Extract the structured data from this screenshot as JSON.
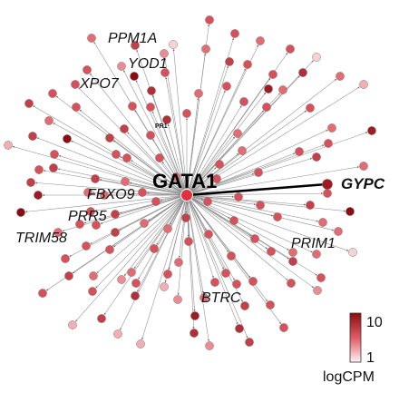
{
  "hub": {
    "label": "GATA1",
    "color": "#e0313c"
  },
  "highlight_label": "GYPC",
  "labels": {
    "ppm1a": "PPM1A",
    "yod1": "YOD1",
    "xpo7": "XPO7",
    "pr1": "PR1",
    "fbxo9": "FBXO9",
    "prr5": "PRR5",
    "trim58": "TRIM58",
    "prim1": "PRIM1",
    "btrc": "BTRC"
  },
  "legend": {
    "max_label": "10",
    "min_label": "1",
    "title": "logCPM",
    "color_low": "#fff3f3",
    "color_high": "#8b0c12"
  },
  "nodes": [
    [
      101,
      42,
      5
    ],
    [
      149,
      50,
      7
    ],
    [
      191,
      49,
      2
    ],
    [
      231,
      22,
      6
    ],
    [
      259,
      37,
      6
    ],
    [
      287,
      45,
      5
    ],
    [
      320,
      54,
      6
    ],
    [
      334,
      80,
      8
    ],
    [
      349,
      63,
      2
    ],
    [
      181,
      59,
      4
    ],
    [
      227,
      54,
      5
    ],
    [
      253,
      68,
      7
    ],
    [
      273,
      71,
      6
    ],
    [
      301,
      82,
      6
    ],
    [
      312,
      99,
      5
    ],
    [
      375,
      84,
      5
    ],
    [
      401,
      93,
      3
    ],
    [
      342,
      119,
      6
    ],
    [
      296,
      98,
      9
    ],
    [
      294,
      118,
      6
    ],
    [
      250,
      95,
      6
    ],
    [
      269,
      112,
      6
    ],
    [
      219,
      103,
      5
    ],
    [
      206,
      125,
      6
    ],
    [
      184,
      132,
      8
    ],
    [
      167,
      100,
      8
    ],
    [
      166,
      118,
      6
    ],
    [
      148,
      84,
      10
    ],
    [
      134,
      73,
      4
    ],
    [
      96,
      77,
      6
    ],
    [
      83,
      93,
      6
    ],
    [
      84,
      118,
      6
    ],
    [
      32,
      114,
      7
    ],
    [
      54,
      133,
      5
    ],
    [
      74,
      153,
      10
    ],
    [
      36,
      150,
      7
    ],
    [
      9,
      160,
      3
    ],
    [
      121,
      152,
      7
    ],
    [
      128,
      170,
      6
    ],
    [
      43,
      187,
      6
    ],
    [
      59,
      185,
      7
    ],
    [
      34,
      201,
      7
    ],
    [
      105,
      197,
      7
    ],
    [
      42,
      215,
      9
    ],
    [
      23,
      234,
      10
    ],
    [
      97,
      212,
      5
    ],
    [
      100,
      233,
      6
    ],
    [
      106,
      248,
      6
    ],
    [
      127,
      256,
      7
    ],
    [
      64,
      256,
      5
    ],
    [
      72,
      285,
      6
    ],
    [
      76,
      304,
      7
    ],
    [
      103,
      304,
      5
    ],
    [
      102,
      321,
      6
    ],
    [
      145,
      300,
      5
    ],
    [
      134,
      308,
      4
    ],
    [
      150,
      312,
      6
    ],
    [
      149,
      326,
      8
    ],
    [
      112,
      351,
      7
    ],
    [
      80,
      358,
      3
    ],
    [
      130,
      368,
      3
    ],
    [
      155,
      379,
      3
    ],
    [
      181,
      316,
      3
    ],
    [
      196,
      330,
      4
    ],
    [
      215,
      348,
      9
    ],
    [
      225,
      328,
      5
    ],
    [
      237,
      311,
      6
    ],
    [
      231,
      381,
      4
    ],
    [
      264,
      362,
      8
    ],
    [
      275,
      377,
      7
    ],
    [
      249,
      301,
      6
    ],
    [
      255,
      282,
      6
    ],
    [
      281,
      263,
      6
    ],
    [
      299,
      277,
      6
    ],
    [
      323,
      288,
      7
    ],
    [
      298,
      336,
      6
    ],
    [
      321,
      312,
      6
    ],
    [
      350,
      320,
      4
    ],
    [
      354,
      306,
      6
    ],
    [
      323,
      278,
      5
    ],
    [
      349,
      280,
      5
    ],
    [
      389,
      278,
      2
    ],
    [
      373,
      255,
      5
    ],
    [
      356,
      245,
      5
    ],
    [
      342,
      226,
      7
    ],
    [
      386,
      233,
      10
    ],
    [
      360,
      203,
      5
    ],
    [
      401,
      183,
      5
    ],
    [
      349,
      173,
      7
    ],
    [
      362,
      158,
      6
    ],
    [
      330,
      167,
      6
    ],
    [
      262,
      147,
      5
    ],
    [
      267,
      166,
      5
    ],
    [
      242,
      181,
      6
    ],
    [
      285,
      190,
      6
    ],
    [
      166,
      149,
      6
    ],
    [
      176,
      174,
      6
    ],
    [
      157,
      212,
      6
    ],
    [
      263,
      217,
      6
    ],
    [
      214,
      367,
      8
    ],
    [
      170,
      274,
      6
    ],
    [
      159,
      246,
      5
    ],
    [
      185,
      252,
      5
    ],
    [
      230,
      258,
      6
    ],
    [
      270,
      337,
      7
    ],
    [
      185,
      302,
      6
    ],
    [
      410,
      144,
      9
    ],
    [
      366,
      141,
      5
    ],
    [
      140,
      174,
      6
    ],
    [
      58,
      103,
      6
    ],
    [
      205,
      240,
      7
    ],
    [
      306,
      239,
      6
    ],
    [
      127,
      236,
      7
    ],
    [
      88,
      247,
      6
    ],
    [
      197,
      289,
      5
    ],
    [
      47,
      323,
      6
    ],
    [
      137,
      142,
      7
    ],
    [
      313,
      361,
      6
    ],
    [
      258,
      243,
      6
    ],
    [
      239,
      197,
      6
    ],
    [
      194,
      195,
      5
    ],
    [
      146,
      117,
      6
    ],
    [
      172,
      222,
      6
    ],
    [
      115,
      215,
      5
    ],
    [
      138,
      200,
      5
    ],
    [
      60,
      170,
      6
    ],
    [
      279,
      310,
      6
    ],
    [
      229,
      222,
      6
    ],
    [
      261,
      313,
      6
    ],
    [
      95,
      271,
      6
    ],
    [
      287,
      226,
      6
    ],
    [
      121,
      275,
      6
    ],
    [
      208,
      266,
      6
    ],
    [
      182,
      80,
      6
    ],
    [
      361,
      213,
      6
    ]
  ],
  "gypc_node": [
    361,
    203,
    9
  ]
}
